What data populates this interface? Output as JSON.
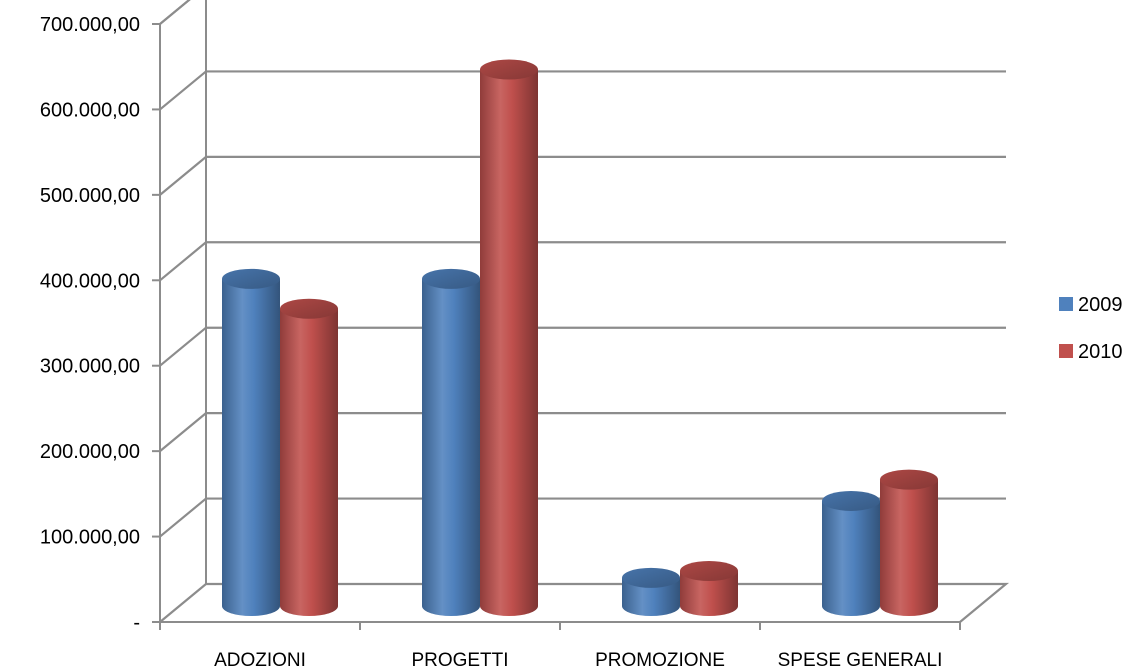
{
  "chart_data": {
    "type": "bar",
    "subtype": "3d-cylinder",
    "title": "",
    "xlabel": "",
    "ylabel": "",
    "categories": [
      "ADOZIONI",
      "PROGETTI",
      "PROMOZIONE",
      "SPESE GENERALI"
    ],
    "series": [
      {
        "name": "2009",
        "color": "#4f81bd",
        "values": [
          390000,
          390000,
          40000,
          130000
        ]
      },
      {
        "name": "2010",
        "color": "#c0504d",
        "values": [
          355000,
          635000,
          48000,
          155000
        ]
      }
    ],
    "ylim": [
      0,
      700000
    ],
    "y_ticks": [
      {
        "value": 0,
        "label": "-"
      },
      {
        "value": 100000,
        "label": "100.000,00"
      },
      {
        "value": 200000,
        "label": "200.000,00"
      },
      {
        "value": 300000,
        "label": "300.000,00"
      },
      {
        "value": 400000,
        "label": "400.000,00"
      },
      {
        "value": 500000,
        "label": "500.000,00"
      },
      {
        "value": 600000,
        "label": "600.000,00"
      },
      {
        "value": 700000,
        "label": "700.000,00"
      }
    ],
    "grid": true,
    "legend_position": "right"
  }
}
